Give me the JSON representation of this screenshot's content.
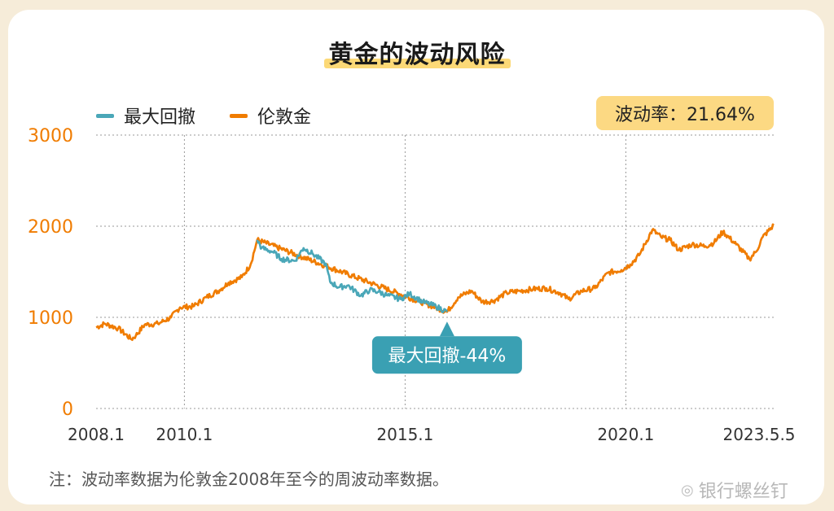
{
  "title": "黄金的波动风险",
  "legend": {
    "drawdown_label": "最大回撤",
    "gold_label": "伦敦金"
  },
  "volatility_badge": "波动率：21.64%",
  "drawdown_callout": "最大回撤-44%",
  "footnote": "注：波动率数据为伦敦金2008年至今的周波动率数据。",
  "watermark": "银行螺丝钉",
  "icons": {
    "watermark": "weibo-icon"
  },
  "colors": {
    "gold_line": "#f07c00",
    "drawdown_line": "#4aa7b8",
    "callout_bg": "#3aa0b3",
    "badge_bg": "#fcd983",
    "y_tick_color": "#f07c00",
    "grid": "#999999"
  },
  "chart_data": {
    "type": "line",
    "ylim": [
      0,
      3000
    ],
    "xlim": [
      2008.0,
      2023.35
    ],
    "y_ticks": [
      "0",
      "1000",
      "2000",
      "3000"
    ],
    "x_ticks": [
      {
        "x": 2008.0,
        "label": "2008.1"
      },
      {
        "x": 2010.0,
        "label": "2010.1"
      },
      {
        "x": 2015.0,
        "label": "2015.1"
      },
      {
        "x": 2020.0,
        "label": "2020.1"
      },
      {
        "x": 2023.35,
        "label": "2023.5.5"
      }
    ],
    "grid": "dotted",
    "legend_position": "top-left",
    "series": [
      {
        "name": "伦敦金",
        "x": [
          2008.0,
          2008.2,
          2008.5,
          2008.8,
          2008.9,
          2009.1,
          2009.4,
          2009.7,
          2009.9,
          2010.2,
          2010.5,
          2010.8,
          2011.0,
          2011.3,
          2011.5,
          2011.65,
          2015.95,
          2016.2,
          2016.5,
          2016.75,
          2017.0,
          2017.3,
          2017.6,
          2017.9,
          2018.2,
          2018.5,
          2018.7,
          2019.0,
          2019.3,
          2019.6,
          2019.9,
          2020.1,
          2020.3,
          2020.6,
          2020.8,
          2021.0,
          2021.2,
          2021.5,
          2021.8,
          2022.0,
          2022.2,
          2022.5,
          2022.8,
          2022.95,
          2023.1,
          2023.35
        ],
        "y": [
          890,
          930,
          880,
          760,
          800,
          920,
          930,
          1000,
          1110,
          1120,
          1220,
          1300,
          1380,
          1440,
          1580,
          1850,
          1060,
          1220,
          1290,
          1170,
          1180,
          1270,
          1290,
          1310,
          1320,
          1270,
          1200,
          1290,
          1320,
          1490,
          1520,
          1580,
          1680,
          1960,
          1880,
          1850,
          1740,
          1800,
          1780,
          1820,
          1940,
          1800,
          1640,
          1720,
          1880,
          2010
        ]
      },
      {
        "name": "最大回撤",
        "x": [
          2011.65,
          2011.75,
          2012.0,
          2012.2,
          2012.5,
          2012.7,
          2012.9,
          2013.2,
          2013.3,
          2013.5,
          2013.7,
          2014.0,
          2014.2,
          2014.4,
          2014.6,
          2014.9,
          2015.1,
          2015.4,
          2015.7,
          2015.95
        ],
        "y": [
          1850,
          1760,
          1720,
          1640,
          1620,
          1760,
          1700,
          1590,
          1390,
          1330,
          1350,
          1240,
          1300,
          1280,
          1240,
          1200,
          1260,
          1170,
          1120,
          1060
        ]
      }
    ],
    "annotation": {
      "x": 2015.95,
      "y": 1060,
      "text": "最大回撤-44%"
    }
  }
}
